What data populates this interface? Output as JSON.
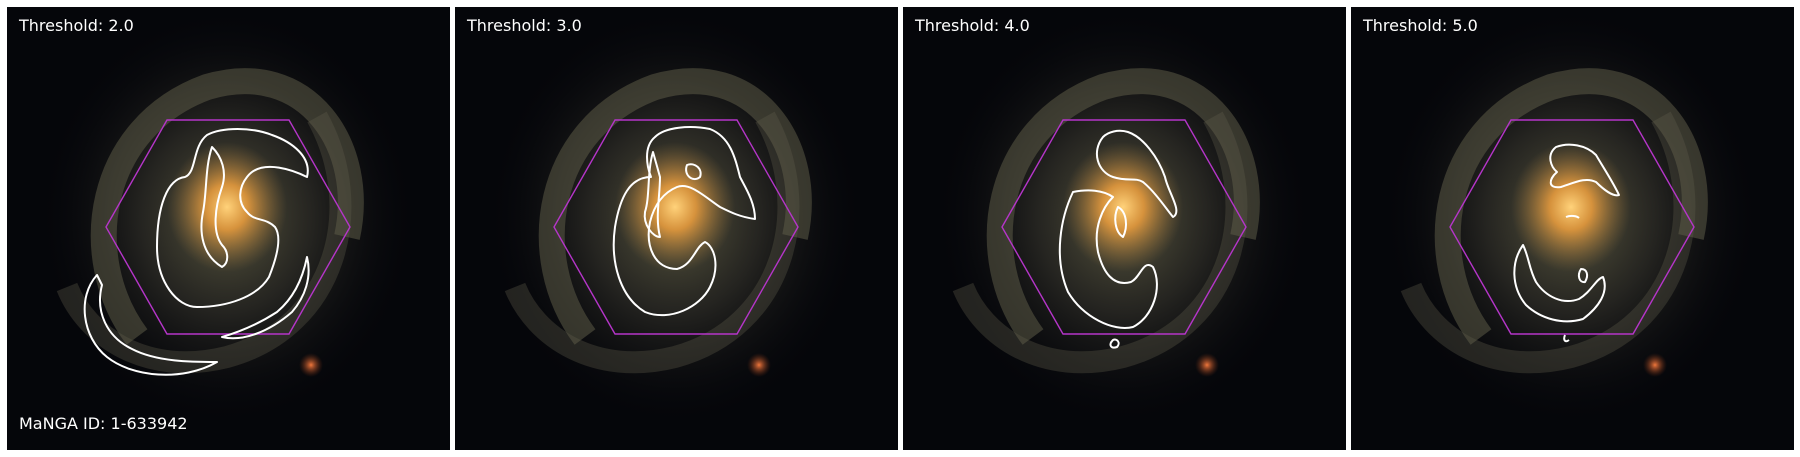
{
  "figure": {
    "manga_id_label": "MaNGA ID: 1-633942",
    "colors": {
      "hexagon": "#b535c9",
      "contour": "#ffffff",
      "background": "#05060a",
      "bulge": "#f2a545",
      "arms": "#8a8560",
      "foreground_star": "#d65a2c"
    },
    "panels": [
      {
        "title": "Threshold: 2.0"
      },
      {
        "title": "Threshold: 3.0"
      },
      {
        "title": "Threshold: 4.0"
      },
      {
        "title": "Threshold: 5.0"
      }
    ]
  }
}
